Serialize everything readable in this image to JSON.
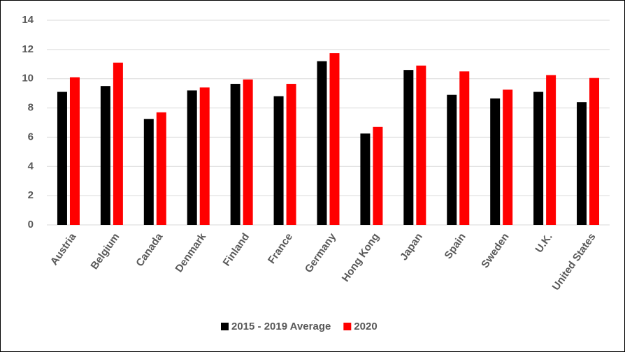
{
  "chart_data": {
    "type": "bar",
    "categories": [
      "Austria",
      "Belgium",
      "Canada",
      "Denmark",
      "Finland",
      "France",
      "Germany",
      "Hong Kong",
      "Japan",
      "Spain",
      "Sweden",
      "U.K.",
      "United States"
    ],
    "series": [
      {
        "name": "2015 - 2019 Average",
        "color": "#000000",
        "values": [
          9.1,
          9.5,
          7.25,
          9.2,
          9.65,
          8.8,
          11.2,
          6.25,
          10.6,
          8.9,
          8.65,
          9.1,
          8.4
        ]
      },
      {
        "name": "2020",
        "color": "#ff0000",
        "values": [
          10.1,
          11.1,
          7.7,
          9.4,
          9.95,
          9.65,
          11.75,
          6.7,
          10.9,
          10.5,
          9.25,
          10.25,
          10.05
        ]
      }
    ],
    "ylim": [
      0,
      14
    ],
    "yticks": [
      0,
      2,
      4,
      6,
      8,
      10,
      12,
      14
    ],
    "grid": true,
    "legend": "bottom"
  }
}
